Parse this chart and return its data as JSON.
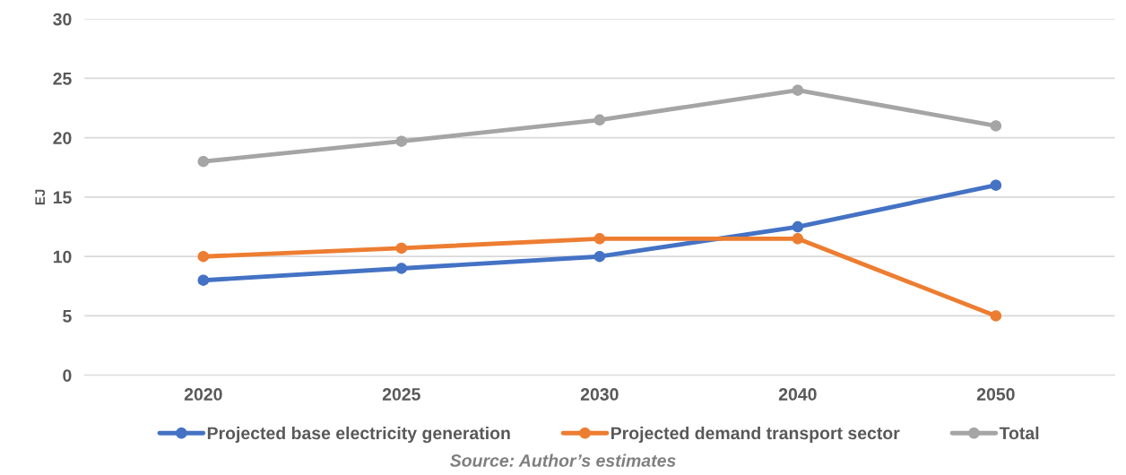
{
  "chart_data": {
    "type": "line",
    "ylabel": "EJ",
    "categories": [
      "2020",
      "2025",
      "2030",
      "2040",
      "2050"
    ],
    "series": [
      {
        "name": "Projected base electricity generation",
        "color": "#4472c4",
        "values": [
          8,
          9,
          10,
          12.5,
          16
        ]
      },
      {
        "name": "Projected demand transport sector",
        "color": "#ed7d31",
        "values": [
          10,
          10.7,
          11.5,
          11.5,
          5
        ]
      },
      {
        "name": "Total",
        "color": "#a5a5a5",
        "values": [
          18,
          19.7,
          21.5,
          24,
          21
        ]
      }
    ],
    "ylim": [
      0,
      30
    ],
    "yticks": [
      0,
      5,
      10,
      15,
      20,
      25,
      30
    ],
    "grid": "y",
    "legend": "bottom",
    "marker": "circle",
    "line_style": "solid",
    "annotations": [
      "Source: Author’s estimates"
    ]
  }
}
